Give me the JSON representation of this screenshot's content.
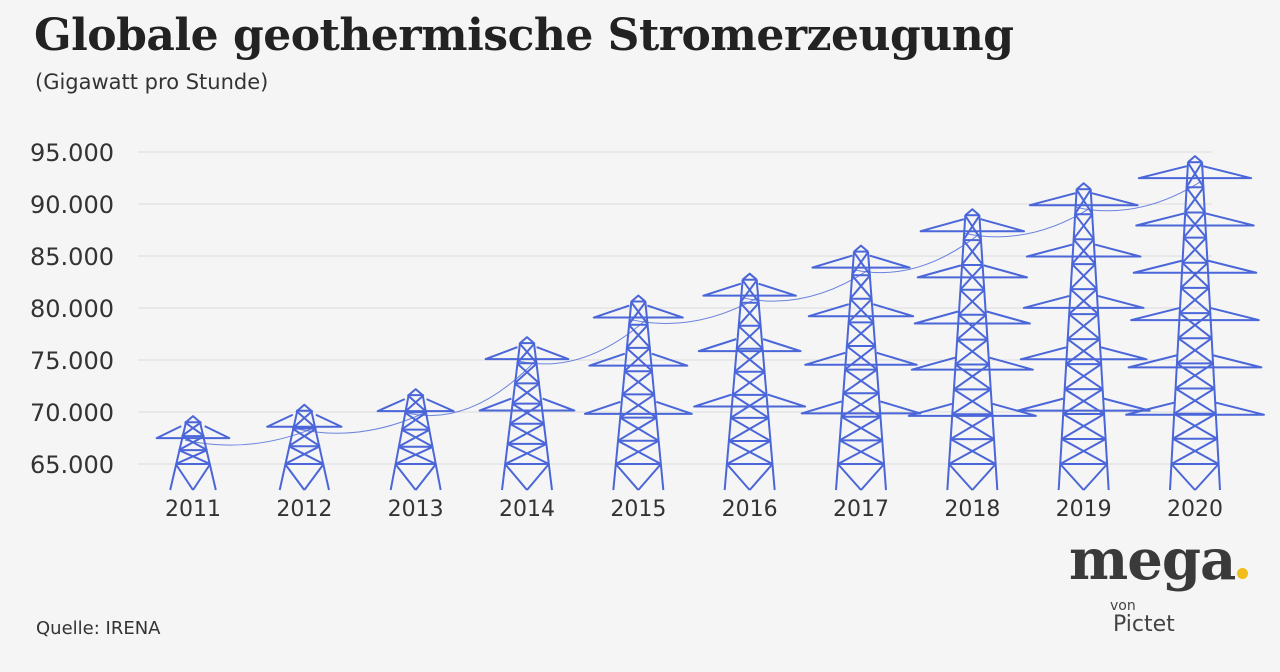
{
  "header": {
    "title": "Globale geothermische Stromerzeugung",
    "subtitle": "(Gigawatt pro Stunde)"
  },
  "footer": {
    "source": "Quelle: IRENA"
  },
  "logo": {
    "brand": "mega",
    "von": "von",
    "pictet": "Pictet",
    "dot_color": "#f2bc1b"
  },
  "colors": {
    "tower": "#4a66d8",
    "grid": "#dcdcdc",
    "text": "#333333"
  },
  "chart_data": {
    "type": "bar",
    "title": "Globale geothermische Stromerzeugung",
    "subtitle": "(Gigawatt pro Stunde)",
    "categories": [
      "2011",
      "2012",
      "2013",
      "2014",
      "2015",
      "2016",
      "2017",
      "2018",
      "2019",
      "2020"
    ],
    "values": [
      69600,
      70700,
      72200,
      77200,
      81200,
      83300,
      86000,
      89500,
      92000,
      94600
    ],
    "ylim": [
      62000,
      95000
    ],
    "yticks": [
      65000,
      70000,
      75000,
      80000,
      85000,
      90000,
      95000
    ],
    "ytick_labels": [
      "65.000",
      "70.000",
      "75.000",
      "80.000",
      "85.000",
      "90.000",
      "95.000"
    ],
    "xlabel": "",
    "ylabel": "",
    "grid": true,
    "mark": "power-pylon"
  }
}
